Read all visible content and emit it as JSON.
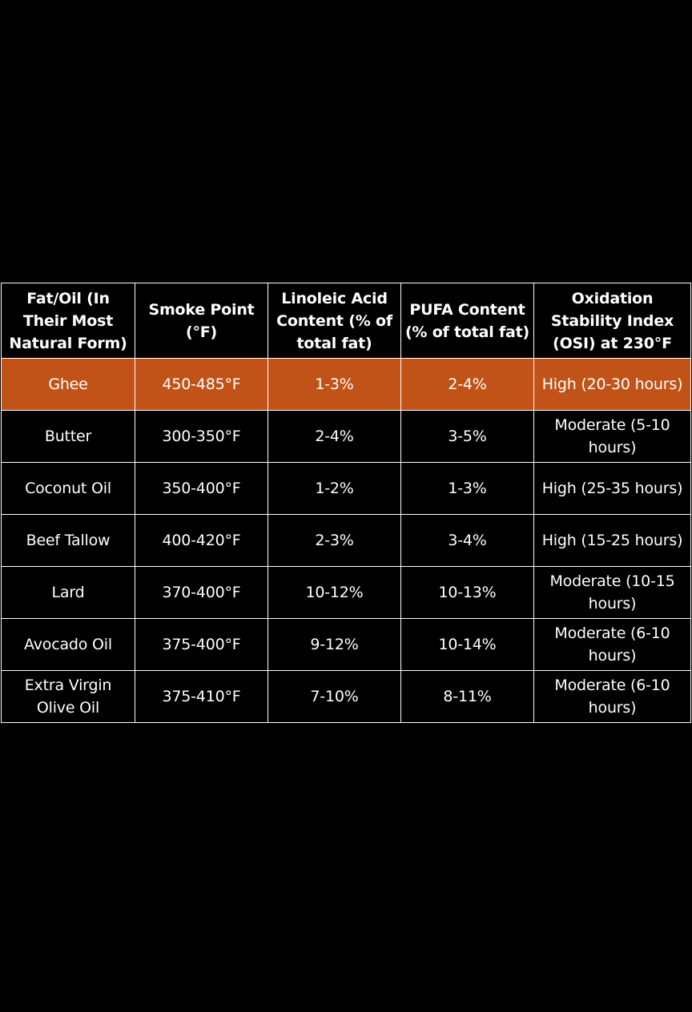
{
  "colors": {
    "background": "#000000",
    "text": "#ffffff",
    "highlight_row": "#c15319",
    "border": "#ffffff"
  },
  "table": {
    "headers": [
      "Fat/Oil (In Their Most Natural Form)",
      "Smoke Point (°F)",
      "Linoleic Acid Content (% of total fat)",
      "PUFA Content (% of total fat)",
      "Oxidation Stability Index (OSI) at 230°F"
    ],
    "highlighted_row_index": 0,
    "rows": [
      [
        "Ghee",
        "450-485°F",
        "1-3%",
        "2-4%",
        "High (20-30 hours)"
      ],
      [
        "Butter",
        "300-350°F",
        "2-4%",
        "3-5%",
        "Moderate (5-10 hours)"
      ],
      [
        "Coconut Oil",
        "350-400°F",
        "1-2%",
        "1-3%",
        "High (25-35 hours)"
      ],
      [
        "Beef Tallow",
        "400-420°F",
        "2-3%",
        "3-4%",
        "High (15-25 hours)"
      ],
      [
        "Lard",
        "370-400°F",
        "10-12%",
        "10-13%",
        "Moderate (10-15 hours)"
      ],
      [
        "Avocado Oil",
        "375-400°F",
        "9-12%",
        "10-14%",
        "Moderate (6-10 hours)"
      ],
      [
        "Extra Virgin Olive Oil",
        "375-410°F",
        "7-10%",
        "8-11%",
        "Moderate (6-10 hours)"
      ]
    ]
  }
}
